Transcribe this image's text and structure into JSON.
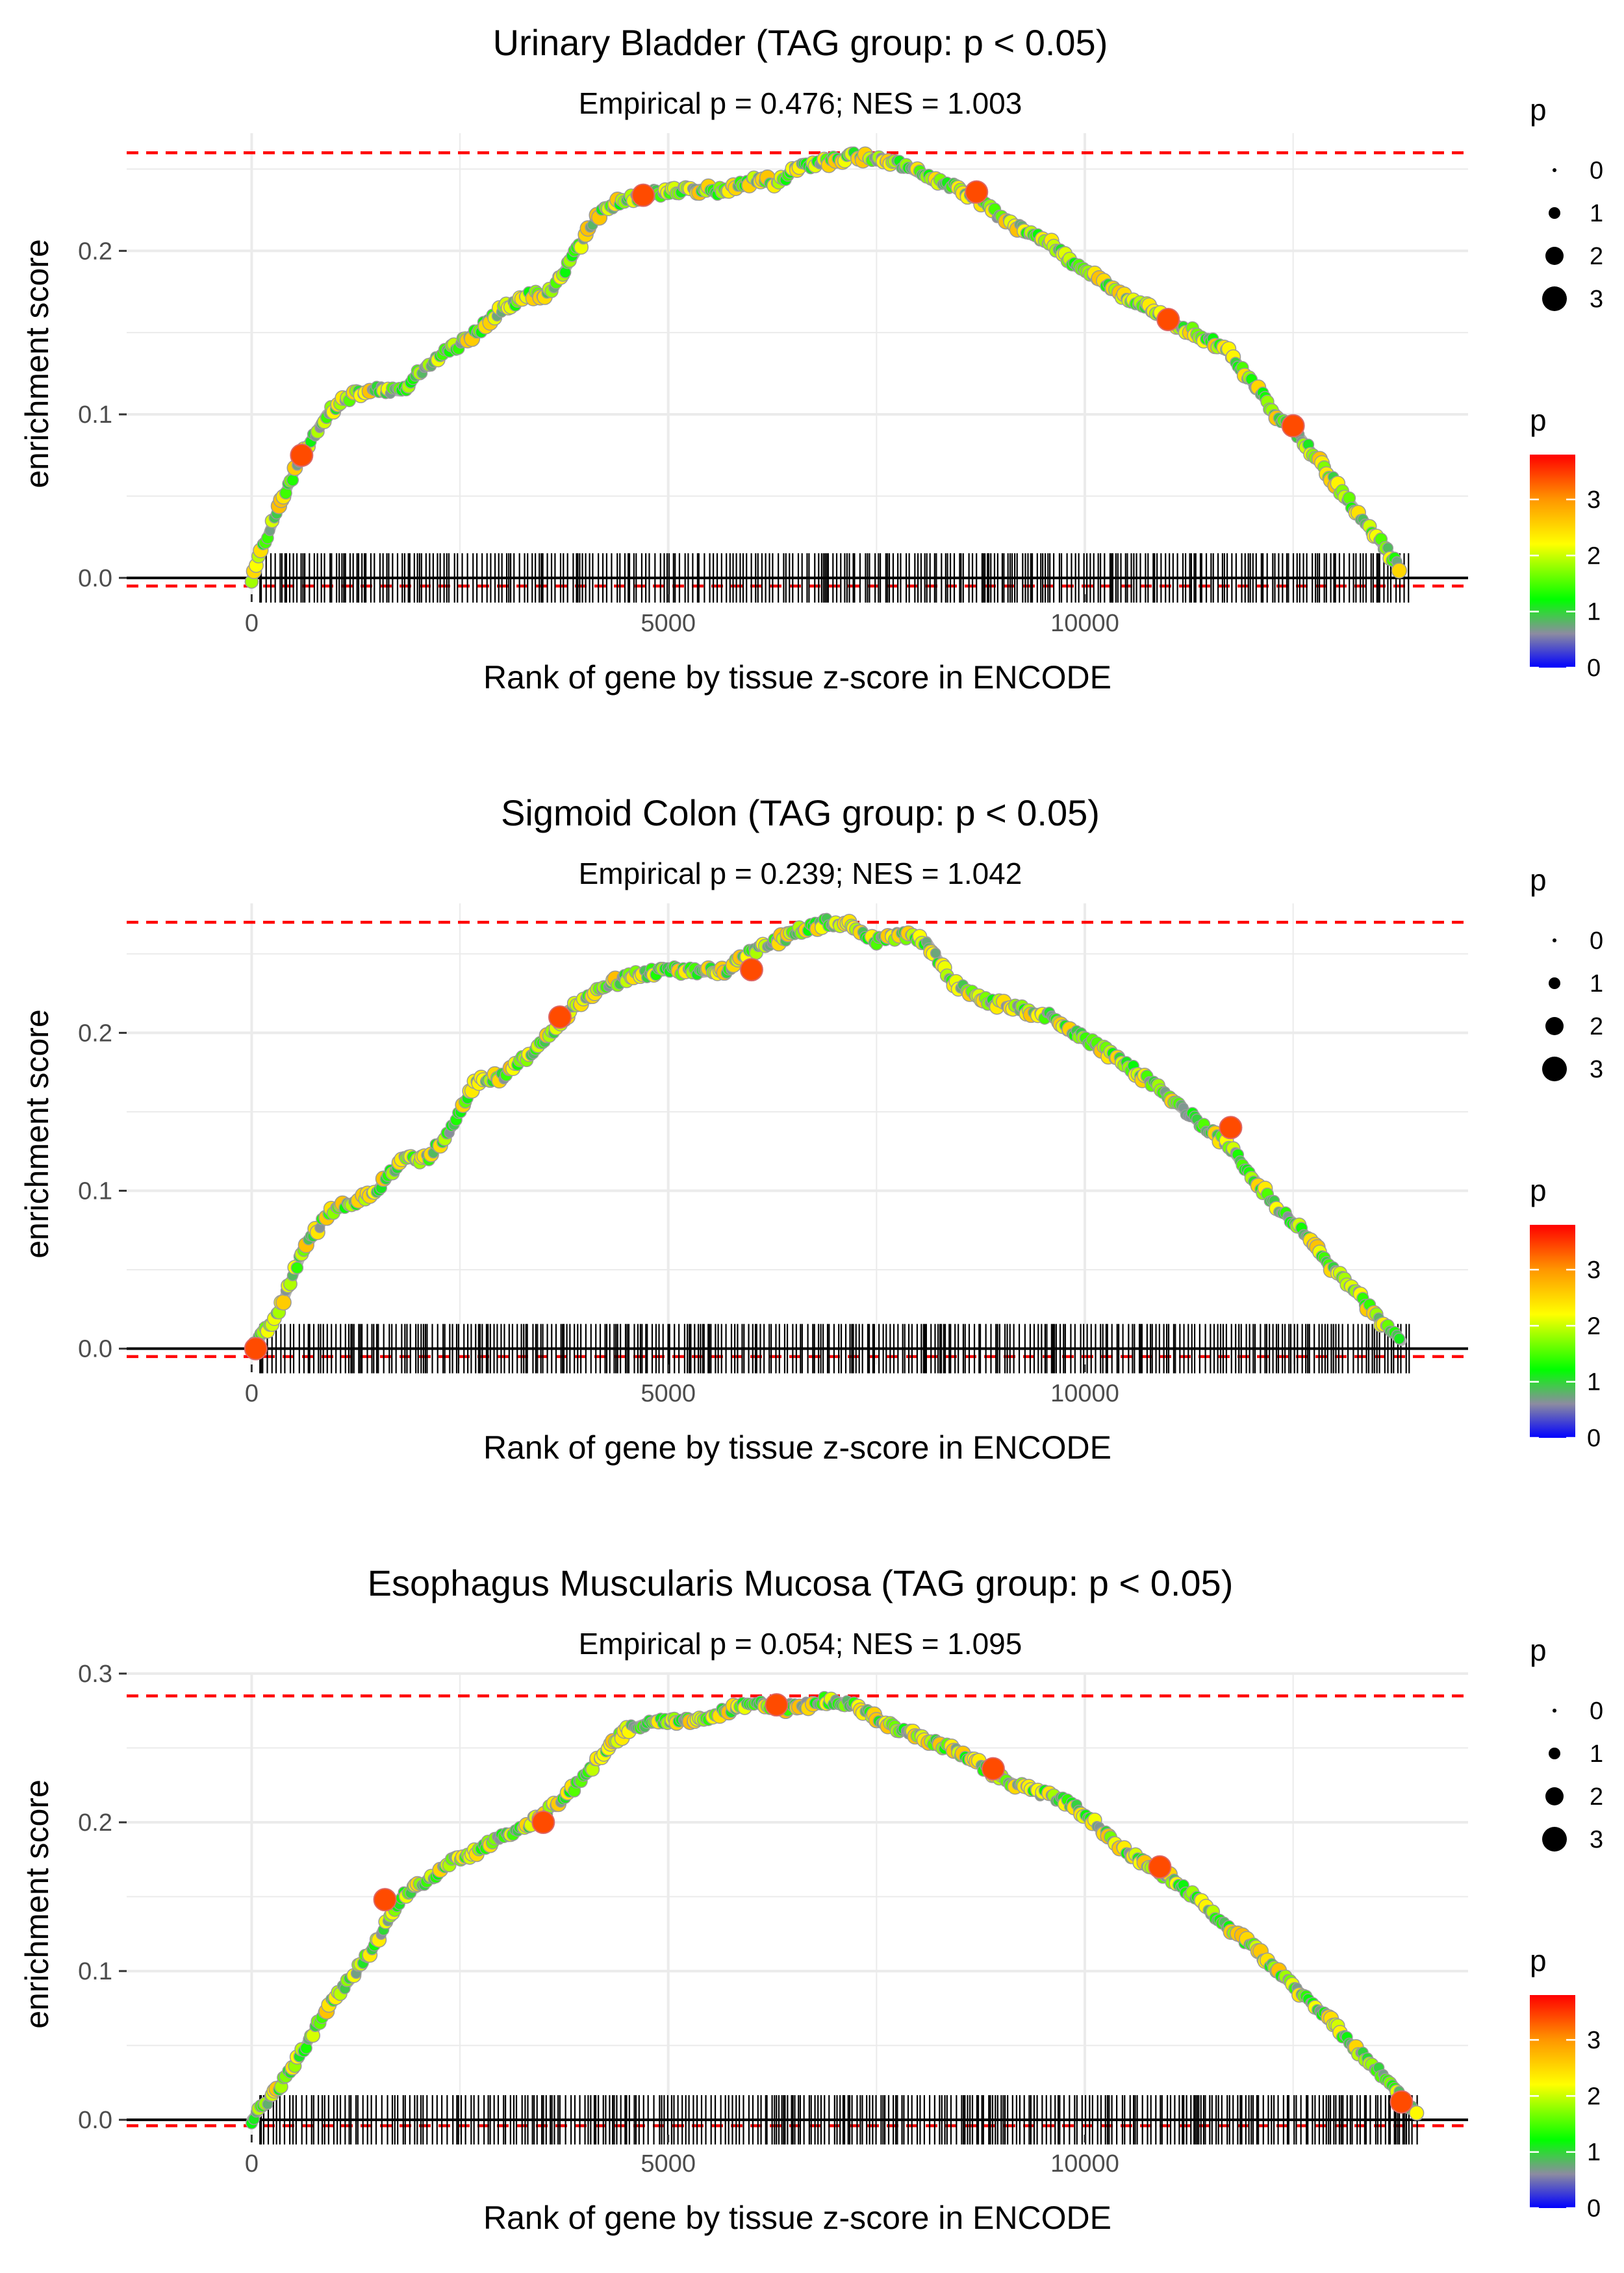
{
  "chart_data": [
    {
      "type": "line",
      "title": "Urinary Bladder (TAG group: p < 0.05)",
      "subtitle": "Empirical p = 0.476; NES = 1.003",
      "xlabel": "Rank of gene by tissue z-score in ENCODE",
      "ylabel": "enrichment score",
      "xlim": [
        -1500,
        14600
      ],
      "ylim": [
        -0.01,
        0.272
      ],
      "x_ticks": [
        0,
        5000,
        10000
      ],
      "x_tick_labels": [
        "0",
        "5000",
        "10000"
      ],
      "y_ticks": [
        0.0,
        0.1,
        0.2
      ],
      "y_tick_labels": [
        "0.0",
        "0.1",
        "0.2"
      ],
      "es_max": 0.26,
      "es_min": -0.005,
      "rug_range": [
        100,
        13900
      ],
      "series": [
        {
          "name": "running enrichment score",
          "x": [
            0,
            300,
            600,
            900,
            1200,
            1500,
            1800,
            2100,
            2400,
            2700,
            3000,
            3300,
            3600,
            3900,
            4200,
            4500,
            4800,
            5100,
            5400,
            5700,
            6000,
            6300,
            6600,
            6900,
            7200,
            7500,
            7800,
            8100,
            8400,
            8700,
            9000,
            9300,
            9600,
            9900,
            10200,
            10500,
            10800,
            11100,
            11400,
            11700,
            12000,
            12300,
            12600,
            12900,
            13200,
            13500,
            13800
          ],
          "y": [
            0.0,
            0.04,
            0.075,
            0.1,
            0.112,
            0.115,
            0.114,
            0.13,
            0.14,
            0.15,
            0.165,
            0.172,
            0.175,
            0.2,
            0.225,
            0.232,
            0.235,
            0.236,
            0.238,
            0.236,
            0.243,
            0.242,
            0.252,
            0.254,
            0.258,
            0.257,
            0.253,
            0.245,
            0.24,
            0.232,
            0.22,
            0.212,
            0.205,
            0.19,
            0.182,
            0.172,
            0.165,
            0.155,
            0.148,
            0.14,
            0.12,
            0.1,
            0.085,
            0.065,
            0.045,
            0.025,
            0.005
          ]
        }
      ],
      "highlight_points": [
        {
          "x": 600,
          "y": 0.075
        },
        {
          "x": 4700,
          "y": 0.234
        },
        {
          "x": 8700,
          "y": 0.236
        },
        {
          "x": 11000,
          "y": 0.158
        },
        {
          "x": 12500,
          "y": 0.093
        }
      ],
      "size_legend": {
        "title": "p",
        "labels": [
          "0",
          "1",
          "2",
          "3"
        ]
      },
      "color_legend": {
        "title": "p",
        "labels": [
          "0",
          "1",
          "2",
          "3"
        ]
      }
    },
    {
      "type": "line",
      "title": "Sigmoid Colon (TAG group: p < 0.05)",
      "subtitle": "Empirical p = 0.239; NES = 1.042",
      "xlabel": "Rank of gene by tissue z-score in ENCODE",
      "ylabel": "enrichment score",
      "xlim": [
        -1500,
        14600
      ],
      "ylim": [
        -0.01,
        0.282
      ],
      "x_ticks": [
        0,
        5000,
        10000
      ],
      "x_tick_labels": [
        "0",
        "5000",
        "10000"
      ],
      "y_ticks": [
        0.0,
        0.1,
        0.2
      ],
      "y_tick_labels": [
        "0.0",
        "0.1",
        "0.2"
      ],
      "es_max": 0.27,
      "es_min": -0.005,
      "rug_range": [
        100,
        13900
      ],
      "series": [
        {
          "name": "running enrichment score",
          "x": [
            0,
            300,
            600,
            900,
            1200,
            1500,
            1800,
            2100,
            2400,
            2700,
            3000,
            3300,
            3600,
            3900,
            4200,
            4500,
            4800,
            5100,
            5400,
            5700,
            6000,
            6300,
            6600,
            6900,
            7200,
            7500,
            7800,
            8100,
            8400,
            8700,
            9000,
            9300,
            9600,
            9900,
            10200,
            10500,
            10800,
            11100,
            11400,
            11700,
            12000,
            12300,
            12600,
            12900,
            13200,
            13500,
            13800
          ],
          "y": [
            0.0,
            0.02,
            0.06,
            0.085,
            0.092,
            0.1,
            0.12,
            0.12,
            0.14,
            0.17,
            0.172,
            0.185,
            0.2,
            0.218,
            0.228,
            0.235,
            0.238,
            0.24,
            0.238,
            0.24,
            0.252,
            0.258,
            0.265,
            0.27,
            0.268,
            0.258,
            0.262,
            0.258,
            0.233,
            0.222,
            0.218,
            0.214,
            0.21,
            0.2,
            0.19,
            0.18,
            0.168,
            0.155,
            0.142,
            0.13,
            0.11,
            0.09,
            0.075,
            0.055,
            0.04,
            0.02,
            0.005
          ]
        }
      ],
      "highlight_points": [
        {
          "x": 50,
          "y": 0.0
        },
        {
          "x": 3700,
          "y": 0.21
        },
        {
          "x": 6000,
          "y": 0.24
        },
        {
          "x": 11750,
          "y": 0.14
        }
      ],
      "size_legend": {
        "title": "p",
        "labels": [
          "0",
          "1",
          "2",
          "3"
        ]
      },
      "color_legend": {
        "title": "p",
        "labels": [
          "0",
          "1",
          "2",
          "3"
        ]
      }
    },
    {
      "type": "line",
      "title": "Esophagus Muscularis Mucosa (TAG group: p < 0.05)",
      "subtitle": "Empirical p = 0.054; NES = 1.095",
      "xlabel": "Rank of gene by tissue z-score in ENCODE",
      "ylabel": "enrichment score",
      "xlim": [
        -1500,
        14600
      ],
      "ylim": [
        -0.01,
        0.3
      ],
      "x_ticks": [
        0,
        5000,
        10000
      ],
      "x_tick_labels": [
        "0",
        "5000",
        "10000"
      ],
      "y_ticks": [
        0.0,
        0.1,
        0.2,
        0.3
      ],
      "y_tick_labels": [
        "0.0",
        "0.1",
        "0.2",
        "0.3"
      ],
      "es_max": 0.285,
      "es_min": -0.004,
      "rug_range": [
        100,
        14000
      ],
      "series": [
        {
          "name": "running enrichment score",
          "x": [
            0,
            300,
            600,
            900,
            1200,
            1500,
            1800,
            2100,
            2400,
            2700,
            3000,
            3300,
            3600,
            3900,
            4200,
            4500,
            4800,
            5100,
            5400,
            5700,
            6000,
            6300,
            6600,
            6900,
            7200,
            7500,
            7800,
            8100,
            8400,
            8700,
            9000,
            9300,
            9600,
            9900,
            10200,
            10500,
            10800,
            11100,
            11400,
            11700,
            12000,
            12300,
            12600,
            12900,
            13200,
            13500,
            13800,
            14000
          ],
          "y": [
            0.0,
            0.02,
            0.045,
            0.075,
            0.095,
            0.12,
            0.15,
            0.16,
            0.175,
            0.18,
            0.19,
            0.198,
            0.21,
            0.225,
            0.245,
            0.262,
            0.268,
            0.268,
            0.27,
            0.275,
            0.28,
            0.277,
            0.278,
            0.282,
            0.28,
            0.27,
            0.262,
            0.255,
            0.25,
            0.24,
            0.23,
            0.222,
            0.218,
            0.21,
            0.195,
            0.18,
            0.17,
            0.16,
            0.145,
            0.13,
            0.118,
            0.1,
            0.085,
            0.07,
            0.05,
            0.035,
            0.015,
            0.003
          ]
        }
      ],
      "highlight_points": [
        {
          "x": 1600,
          "y": 0.148
        },
        {
          "x": 3500,
          "y": 0.2
        },
        {
          "x": 6300,
          "y": 0.279
        },
        {
          "x": 8900,
          "y": 0.236
        },
        {
          "x": 10900,
          "y": 0.17
        },
        {
          "x": 13800,
          "y": 0.012
        }
      ],
      "size_legend": {
        "title": "p",
        "labels": [
          "0",
          "1",
          "2",
          "3"
        ]
      },
      "color_legend": {
        "title": "p",
        "labels": [
          "0",
          "1",
          "2",
          "3"
        ]
      }
    }
  ]
}
